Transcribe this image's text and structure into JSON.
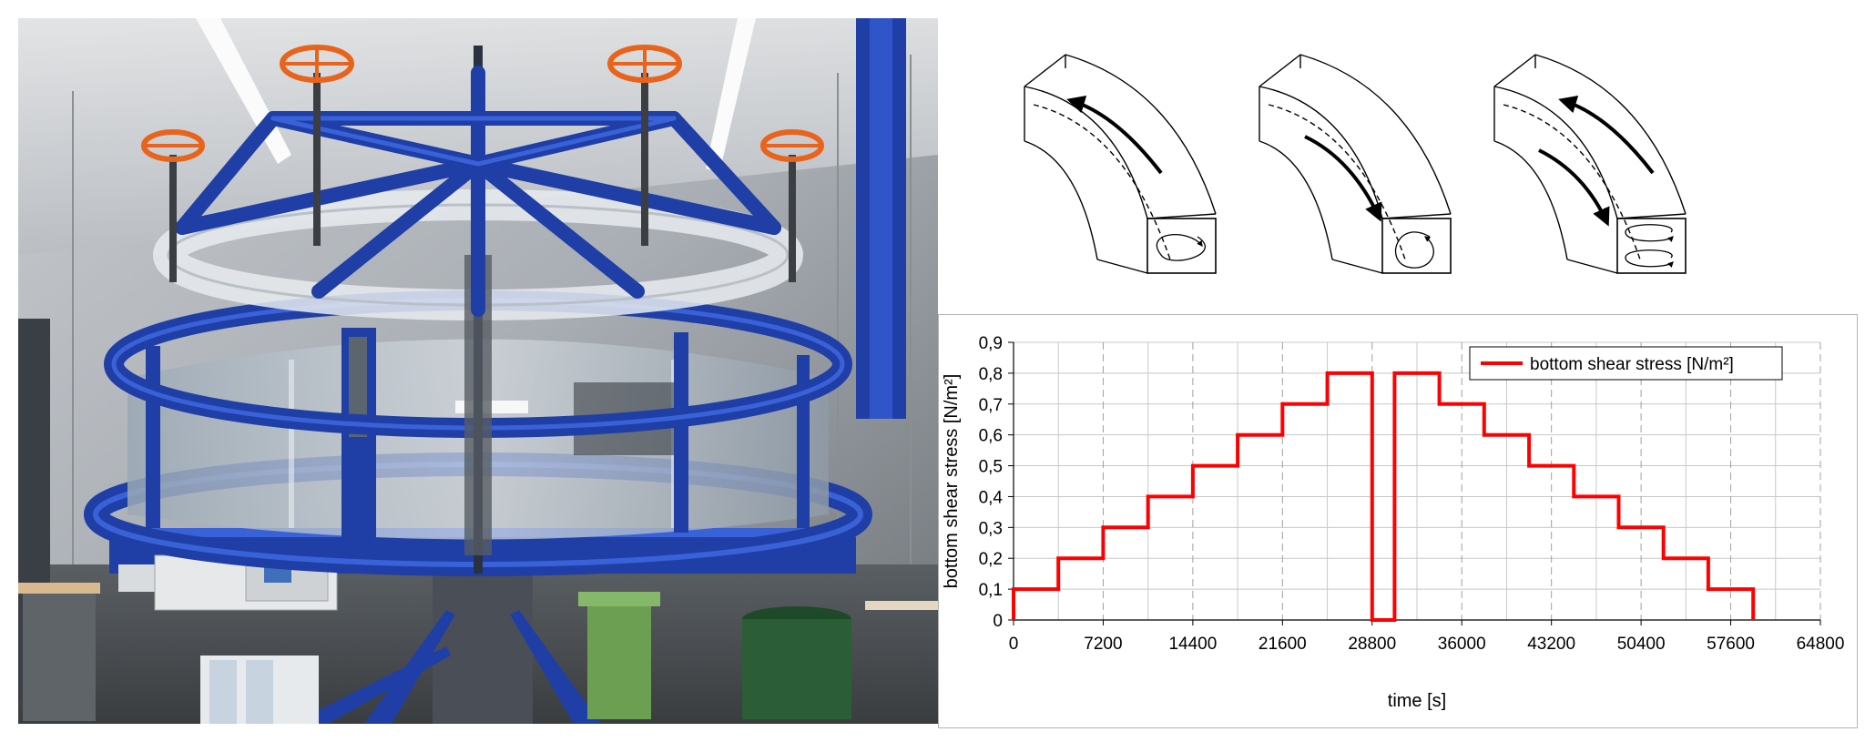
{
  "chart_data": {
    "type": "line",
    "title": "",
    "xlabel": "time [s]",
    "ylabel": "bottom shear stress [N/m²]",
    "xlim": [
      0,
      64800
    ],
    "ylim": [
      0,
      0.9
    ],
    "x_ticks": [
      0,
      7200,
      14400,
      21600,
      28800,
      36000,
      43200,
      50400,
      57600,
      64800
    ],
    "x_tick_labels": [
      "0",
      "7200",
      "14400",
      "21600",
      "28800",
      "36000",
      "43200",
      "50400",
      "57600",
      "64800"
    ],
    "y_ticks": [
      0,
      0.1,
      0.2,
      0.3,
      0.4,
      0.5,
      0.6,
      0.7,
      0.8,
      0.9
    ],
    "y_tick_labels": [
      "0",
      "0,1",
      "0,2",
      "0,3",
      "0,4",
      "0,5",
      "0,6",
      "0,7",
      "0,8",
      "0,9"
    ],
    "grid": true,
    "legend_position": "top-right",
    "series": [
      {
        "name": "bottom shear stress [N/m²]",
        "color": "#ff0000",
        "x": [
          0,
          0,
          3600,
          3600,
          7200,
          7200,
          10800,
          10800,
          14400,
          14400,
          18000,
          18000,
          21600,
          21600,
          25200,
          25200,
          28800,
          28800,
          30600,
          30600,
          34200,
          34200,
          37800,
          37800,
          41400,
          41400,
          45000,
          45000,
          48600,
          48600,
          52200,
          52200,
          55800,
          55800,
          59400,
          59400
        ],
        "y": [
          0,
          0.1,
          0.1,
          0.2,
          0.2,
          0.3,
          0.3,
          0.4,
          0.4,
          0.5,
          0.5,
          0.6,
          0.6,
          0.7,
          0.7,
          0.8,
          0.8,
          0,
          0,
          0.8,
          0.8,
          0.7,
          0.7,
          0.6,
          0.6,
          0.5,
          0.5,
          0.4,
          0.4,
          0.3,
          0.3,
          0.2,
          0.2,
          0.1,
          0.1,
          0
        ]
      }
    ]
  },
  "colors": {
    "frame_blue": "#1f3fa6",
    "handwheel_orange": "#e8641c",
    "grid_gray": "#c8c8c8",
    "line_red": "#ff0000"
  }
}
